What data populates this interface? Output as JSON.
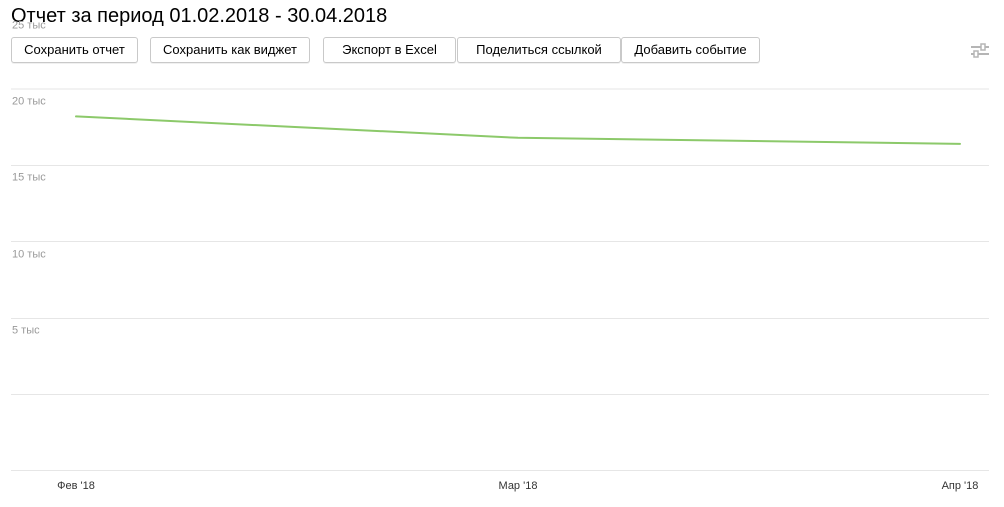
{
  "report": {
    "title": "Отчет за период 01.02.2018 - 30.04.2018"
  },
  "toolbar": {
    "buttons": [
      {
        "id": "save-report",
        "label": "Сохранить отчет"
      },
      {
        "id": "save-widget",
        "label": "Сохранить как виджет"
      },
      {
        "id": "export-excel",
        "label": "Экспорт в Excel"
      },
      {
        "id": "share-link",
        "label": "Поделиться ссылкой"
      },
      {
        "id": "add-event",
        "label": "Добавить событие"
      }
    ],
    "settings_icon": "sliders-icon"
  },
  "colors": {
    "series": "#8cc96a",
    "grid": "#e6e6e6",
    "button_border": "#c9c9c9"
  },
  "chart_data": {
    "type": "line",
    "title": "",
    "xlabel": "",
    "ylabel": "",
    "x": [
      "Фев '18",
      "Мар '18",
      "Апр '18"
    ],
    "y_ticks": [
      "5 тыс",
      "10 тыс",
      "15 тыс",
      "20 тыс",
      "25 тыс"
    ],
    "y_tick_values": [
      5000,
      10000,
      15000,
      20000,
      25000
    ],
    "ylim": [
      0,
      25000
    ],
    "grid": true,
    "legend": "none",
    "series": [
      {
        "values": [
          23200,
          21800,
          21400
        ]
      }
    ]
  }
}
